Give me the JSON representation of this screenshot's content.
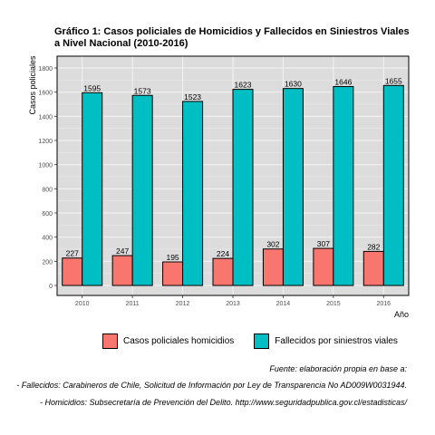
{
  "title_line1": "Gráfico 1: Casos policiales de Homicidios y Fallecidos en Siniestros Viales",
  "title_line2": "a Nivel Nacional (2010-2016)",
  "chart_data": {
    "type": "bar",
    "xlabel": "Año",
    "ylabel": "Casos policiales",
    "ylim": [
      0,
      1850
    ],
    "yticks": [
      0,
      200,
      400,
      600,
      800,
      1000,
      1200,
      1400,
      1600,
      1800
    ],
    "categories": [
      "2010",
      "2011",
      "2012",
      "2013",
      "2014",
      "2015",
      "2016"
    ],
    "series": [
      {
        "name": "Casos policiales homicidios",
        "color": "#F8766D",
        "values": [
          227,
          247,
          195,
          224,
          302,
          307,
          282
        ]
      },
      {
        "name": "Fallecidos por siniestros viales",
        "color": "#00BFC4",
        "values": [
          1595,
          1573,
          1523,
          1623,
          1630,
          1646,
          1655
        ]
      }
    ],
    "grid": true,
    "legend_position": "bottom"
  },
  "source_lines": [
    "Fuente: elaboración propia en base a:",
    "- Fallecidos: Carabineros de Chile, Solicitud de Información por Ley de Transparencia No AD009W0031944.",
    "- Homicidios: Subsecretaría de Prevención del Delito. http://www.seguridadpublica.gov.cl/estadisticas/"
  ]
}
